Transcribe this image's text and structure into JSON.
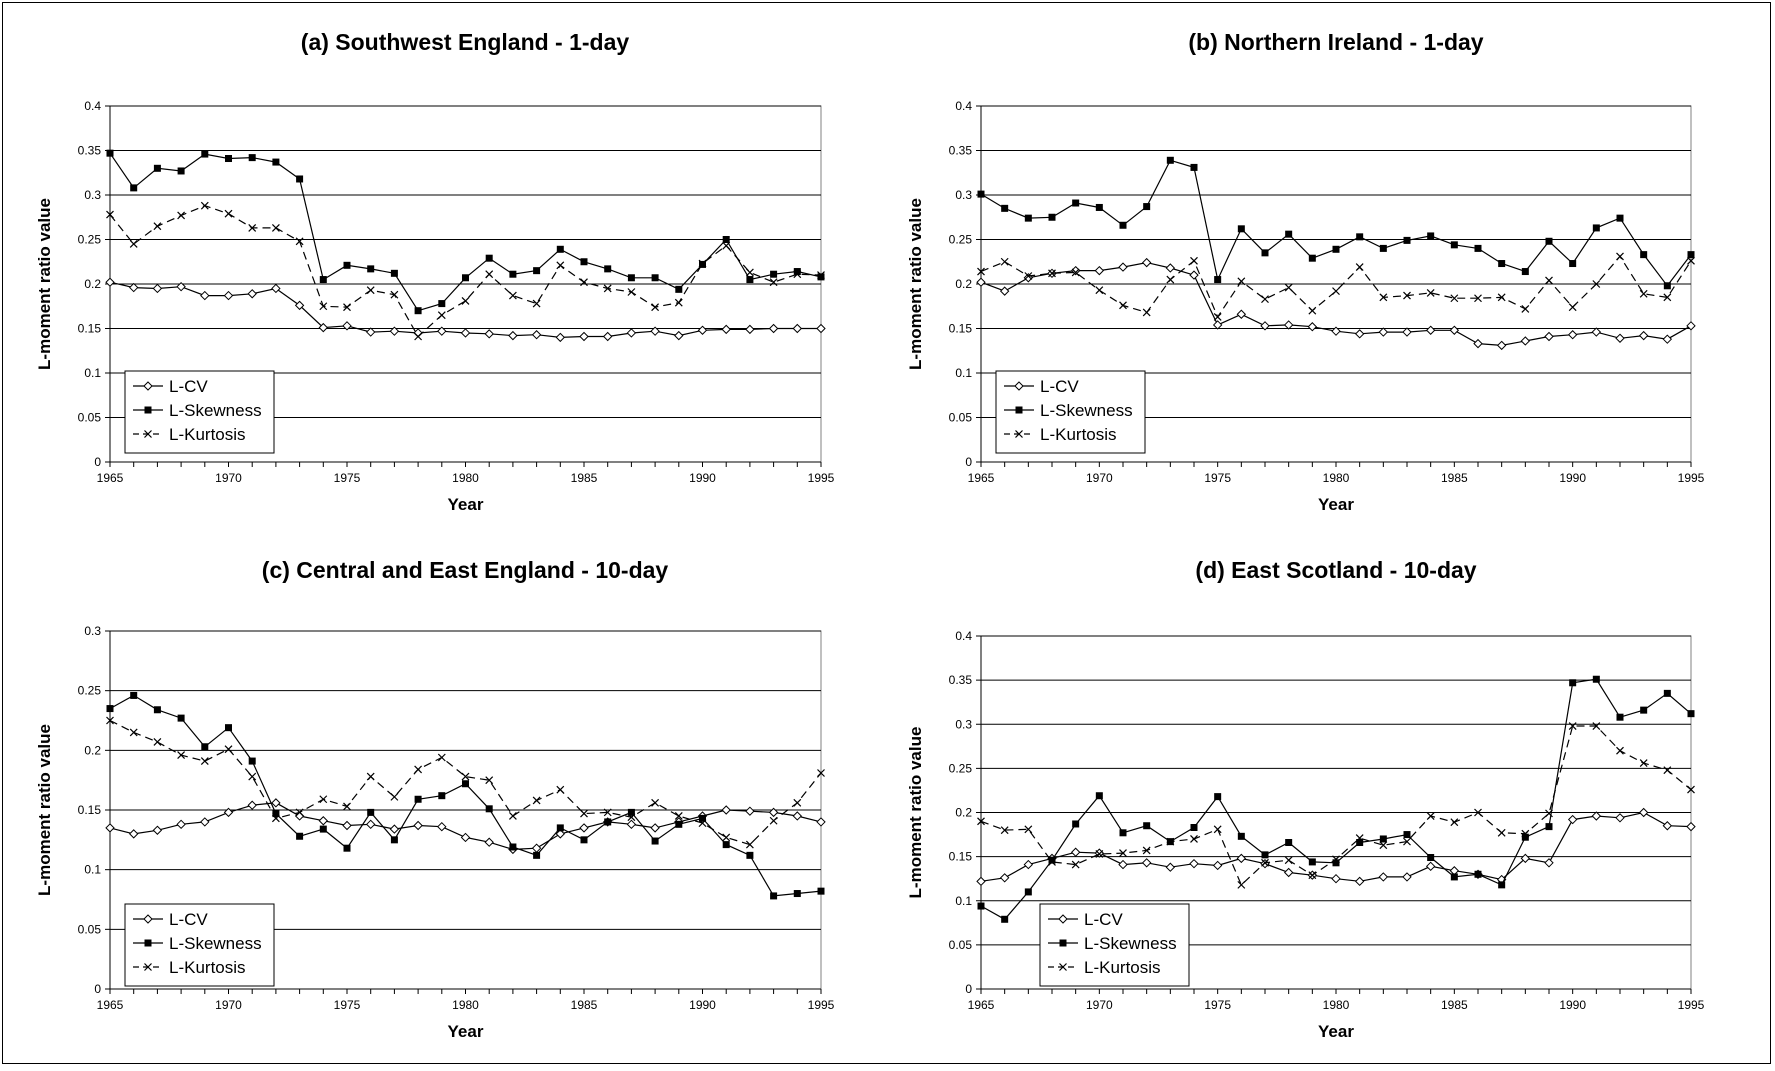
{
  "legend_labels": [
    "L-CV",
    "L-Skewness",
    "L-Kurtosis"
  ],
  "chart_data": [
    {
      "type": "line",
      "title": "(a) Southwest England - 1-day",
      "xlabel": "Year",
      "ylabel": "L-moment ratio value",
      "xlim": [
        1965,
        1995
      ],
      "ylim": [
        0,
        0.4
      ],
      "yticks": [
        0,
        0.05,
        0.1,
        0.15,
        0.2,
        0.25,
        0.3,
        0.35,
        0.4
      ],
      "xticks": [
        1965,
        1970,
        1975,
        1980,
        1985,
        1990,
        1995
      ],
      "legend_position": "bottom-left",
      "x": [
        1965,
        1966,
        1967,
        1968,
        1969,
        1970,
        1971,
        1972,
        1973,
        1974,
        1975,
        1976,
        1977,
        1978,
        1979,
        1980,
        1981,
        1982,
        1983,
        1984,
        1985,
        1986,
        1987,
        1988,
        1989,
        1990,
        1991,
        1992,
        1993,
        1994,
        1995
      ],
      "series": [
        {
          "name": "L-CV",
          "values": [
            0.202,
            0.196,
            0.195,
            0.197,
            0.187,
            0.187,
            0.189,
            0.195,
            0.176,
            0.151,
            0.153,
            0.146,
            0.147,
            0.145,
            0.147,
            0.145,
            0.144,
            0.142,
            0.143,
            0.14,
            0.141,
            0.141,
            0.145,
            0.147,
            0.142,
            0.148,
            0.149,
            0.149,
            0.15,
            0.15,
            0.15
          ]
        },
        {
          "name": "L-Skewness",
          "values": [
            0.347,
            0.308,
            0.33,
            0.327,
            0.346,
            0.341,
            0.342,
            0.337,
            0.318,
            0.205,
            0.221,
            0.217,
            0.212,
            0.17,
            0.178,
            0.207,
            0.229,
            0.211,
            0.215,
            0.239,
            0.225,
            0.217,
            0.207,
            0.207,
            0.194,
            0.222,
            0.25,
            0.205,
            0.211,
            0.214,
            0.208
          ]
        },
        {
          "name": "L-Kurtosis",
          "values": [
            0.278,
            0.245,
            0.265,
            0.277,
            0.288,
            0.279,
            0.263,
            0.263,
            0.248,
            0.175,
            0.174,
            0.193,
            0.188,
            0.141,
            0.165,
            0.181,
            0.211,
            0.187,
            0.178,
            0.221,
            0.202,
            0.195,
            0.191,
            0.174,
            0.179,
            0.223,
            0.243,
            0.213,
            0.202,
            0.211,
            0.21
          ]
        }
      ]
    },
    {
      "type": "line",
      "title": "(b) Northern Ireland - 1-day",
      "xlabel": "Year",
      "ylabel": "L-moment ratio value",
      "xlim": [
        1965,
        1995
      ],
      "ylim": [
        0,
        0.4
      ],
      "yticks": [
        0,
        0.05,
        0.1,
        0.15,
        0.2,
        0.25,
        0.3,
        0.35,
        0.4
      ],
      "xticks": [
        1965,
        1970,
        1975,
        1980,
        1985,
        1990,
        1995
      ],
      "legend_position": "bottom-left",
      "x": [
        1965,
        1966,
        1967,
        1968,
        1969,
        1970,
        1971,
        1972,
        1973,
        1974,
        1975,
        1976,
        1977,
        1978,
        1979,
        1980,
        1981,
        1982,
        1983,
        1984,
        1985,
        1986,
        1987,
        1988,
        1989,
        1990,
        1991,
        1992,
        1993,
        1994,
        1995
      ],
      "series": [
        {
          "name": "L-CV",
          "values": [
            0.202,
            0.192,
            0.207,
            0.212,
            0.215,
            0.215,
            0.219,
            0.224,
            0.218,
            0.21,
            0.154,
            0.166,
            0.153,
            0.154,
            0.152,
            0.147,
            0.144,
            0.146,
            0.146,
            0.148,
            0.148,
            0.133,
            0.131,
            0.136,
            0.141,
            0.143,
            0.146,
            0.139,
            0.142,
            0.138,
            0.153
          ]
        },
        {
          "name": "L-Skewness",
          "values": [
            0.301,
            0.285,
            0.274,
            0.275,
            0.291,
            0.286,
            0.266,
            0.287,
            0.339,
            0.331,
            0.205,
            0.262,
            0.235,
            0.256,
            0.229,
            0.239,
            0.253,
            0.24,
            0.249,
            0.254,
            0.244,
            0.24,
            0.223,
            0.214,
            0.248,
            0.223,
            0.263,
            0.274,
            0.233,
            0.198,
            0.233
          ]
        },
        {
          "name": "L-Kurtosis",
          "values": [
            0.214,
            0.225,
            0.209,
            0.212,
            0.213,
            0.193,
            0.176,
            0.168,
            0.205,
            0.226,
            0.163,
            0.203,
            0.183,
            0.196,
            0.17,
            0.192,
            0.219,
            0.185,
            0.187,
            0.19,
            0.184,
            0.184,
            0.185,
            0.172,
            0.204,
            0.174,
            0.2,
            0.231,
            0.189,
            0.185,
            0.226
          ]
        }
      ]
    },
    {
      "type": "line",
      "title": "(c) Central and East England - 10-day",
      "xlabel": "Year",
      "ylabel": "L-moment ratio value",
      "xlim": [
        1965,
        1995
      ],
      "ylim": [
        0,
        0.3
      ],
      "yticks": [
        0,
        0.05,
        0.1,
        0.15,
        0.2,
        0.25,
        0.3
      ],
      "xticks": [
        1965,
        1970,
        1975,
        1980,
        1985,
        1990,
        1995
      ],
      "legend_position": "bottom-left",
      "x": [
        1965,
        1966,
        1967,
        1968,
        1969,
        1970,
        1971,
        1972,
        1973,
        1974,
        1975,
        1976,
        1977,
        1978,
        1979,
        1980,
        1981,
        1982,
        1983,
        1984,
        1985,
        1986,
        1987,
        1988,
        1989,
        1990,
        1991,
        1992,
        1993,
        1994,
        1995
      ],
      "series": [
        {
          "name": "L-CV",
          "values": [
            0.135,
            0.13,
            0.133,
            0.138,
            0.14,
            0.148,
            0.154,
            0.156,
            0.145,
            0.141,
            0.137,
            0.138,
            0.134,
            0.137,
            0.136,
            0.127,
            0.123,
            0.117,
            0.118,
            0.13,
            0.135,
            0.14,
            0.138,
            0.135,
            0.14,
            0.145,
            0.15,
            0.149,
            0.148,
            0.145,
            0.14
          ]
        },
        {
          "name": "L-Skewness",
          "values": [
            0.235,
            0.246,
            0.234,
            0.227,
            0.203,
            0.219,
            0.191,
            0.147,
            0.128,
            0.134,
            0.118,
            0.148,
            0.125,
            0.159,
            0.162,
            0.172,
            0.151,
            0.119,
            0.112,
            0.135,
            0.125,
            0.14,
            0.148,
            0.124,
            0.138,
            0.143,
            0.121,
            0.112,
            0.078,
            0.08,
            0.082
          ]
        },
        {
          "name": "L-Kurtosis",
          "values": [
            0.225,
            0.215,
            0.207,
            0.196,
            0.191,
            0.201,
            0.178,
            0.143,
            0.148,
            0.159,
            0.153,
            0.178,
            0.161,
            0.184,
            0.194,
            0.178,
            0.175,
            0.145,
            0.158,
            0.167,
            0.147,
            0.148,
            0.144,
            0.156,
            0.145,
            0.139,
            0.127,
            0.121,
            0.141,
            0.156,
            0.181
          ]
        }
      ]
    },
    {
      "type": "line",
      "title": "(d) East Scotland - 10-day",
      "xlabel": "Year",
      "ylabel": "L-moment ratio value",
      "xlim": [
        1965,
        1995
      ],
      "ylim": [
        0,
        0.4
      ],
      "yticks": [
        0,
        0.05,
        0.1,
        0.15,
        0.2,
        0.25,
        0.3,
        0.35,
        0.4
      ],
      "xticks": [
        1965,
        1970,
        1975,
        1980,
        1985,
        1990,
        1995
      ],
      "legend_position": "bottom-left",
      "x": [
        1965,
        1966,
        1967,
        1968,
        1969,
        1970,
        1971,
        1972,
        1973,
        1974,
        1975,
        1976,
        1977,
        1978,
        1979,
        1980,
        1981,
        1982,
        1983,
        1984,
        1985,
        1986,
        1987,
        1988,
        1989,
        1990,
        1991,
        1992,
        1993,
        1994,
        1995
      ],
      "series": [
        {
          "name": "L-CV",
          "values": [
            0.122,
            0.126,
            0.141,
            0.148,
            0.155,
            0.154,
            0.141,
            0.143,
            0.138,
            0.142,
            0.14,
            0.148,
            0.142,
            0.132,
            0.129,
            0.125,
            0.122,
            0.127,
            0.127,
            0.139,
            0.134,
            0.13,
            0.124,
            0.148,
            0.143,
            0.192,
            0.196,
            0.194,
            0.2,
            0.185,
            0.184
          ]
        },
        {
          "name": "L-Skewness",
          "values": [
            0.094,
            0.079,
            0.11,
            0.146,
            0.187,
            0.219,
            0.177,
            0.185,
            0.167,
            0.183,
            0.218,
            0.173,
            0.152,
            0.166,
            0.144,
            0.143,
            0.166,
            0.17,
            0.175,
            0.149,
            0.127,
            0.13,
            0.118,
            0.172,
            0.184,
            0.347,
            0.351,
            0.308,
            0.316,
            0.335,
            0.312
          ]
        },
        {
          "name": "L-Kurtosis",
          "values": [
            0.19,
            0.18,
            0.181,
            0.144,
            0.141,
            0.153,
            0.154,
            0.157,
            0.167,
            0.17,
            0.181,
            0.118,
            0.143,
            0.146,
            0.129,
            0.147,
            0.171,
            0.163,
            0.167,
            0.196,
            0.189,
            0.2,
            0.177,
            0.176,
            0.199,
            0.298,
            0.298,
            0.27,
            0.256,
            0.248,
            0.226
          ]
        }
      ]
    }
  ]
}
